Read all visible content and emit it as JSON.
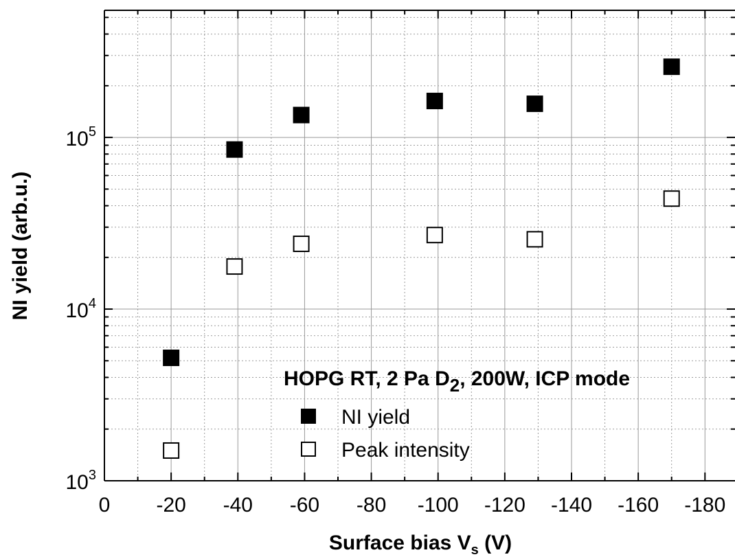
{
  "chart_data": {
    "type": "scatter",
    "xlabel": "Surface bias V",
    "xlabel_sub": "s",
    "xlabel_unit": " (V)",
    "ylabel": "NI yield (arb.u.)",
    "x_reversed": true,
    "xlim": [
      0,
      -189
    ],
    "x_ticks": [
      0,
      -20,
      -40,
      -60,
      -80,
      -100,
      -120,
      -140,
      -160,
      -180
    ],
    "y_scale": "log",
    "ylim": [
      1000,
      550000
    ],
    "y_ticks": [
      {
        "value": 1000,
        "base": "10",
        "exp": "3"
      },
      {
        "value": 10000,
        "base": "10",
        "exp": "4"
      },
      {
        "value": 100000,
        "base": "10",
        "exp": "5"
      }
    ],
    "grid": true,
    "legend": {
      "placement": "bottom-right",
      "title_parts": [
        "HOPG RT, 2 Pa D",
        "2",
        ", 200W, ICP mode"
      ]
    },
    "series": [
      {
        "name": "NI yield",
        "marker": "filled-square",
        "color": "#000000",
        "x": [
          -20,
          -39,
          -59,
          -99,
          -129,
          -170
        ],
        "y": [
          5200,
          85000,
          135000,
          163000,
          157000,
          258000
        ]
      },
      {
        "name": "Peak intensity",
        "marker": "open-square",
        "color": "#000000",
        "x": [
          -20,
          -39,
          -59,
          -99,
          -129,
          -170
        ],
        "y": [
          1500,
          17700,
          24000,
          27000,
          25500,
          44000
        ]
      }
    ]
  }
}
